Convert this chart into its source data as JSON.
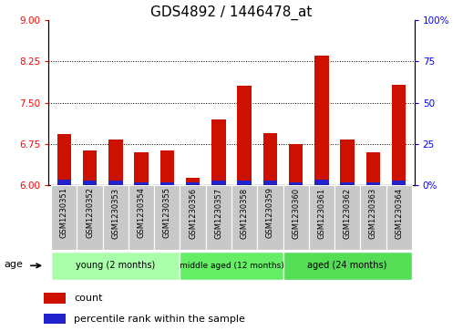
{
  "title": "GDS4892 / 1446478_at",
  "samples": [
    "GSM1230351",
    "GSM1230352",
    "GSM1230353",
    "GSM1230354",
    "GSM1230355",
    "GSM1230356",
    "GSM1230357",
    "GSM1230358",
    "GSM1230359",
    "GSM1230360",
    "GSM1230361",
    "GSM1230362",
    "GSM1230363",
    "GSM1230364"
  ],
  "red_values": [
    6.93,
    6.63,
    6.83,
    6.6,
    6.63,
    6.13,
    7.2,
    7.8,
    6.95,
    6.75,
    8.35,
    6.83,
    6.6,
    7.83
  ],
  "blue_values": [
    0.1,
    0.08,
    0.09,
    0.06,
    0.06,
    0.05,
    0.09,
    0.08,
    0.09,
    0.06,
    0.1,
    0.06,
    0.06,
    0.09
  ],
  "base_value": 6.0,
  "ylim_left": [
    6.0,
    9.0
  ],
  "ylim_right": [
    0,
    100
  ],
  "yticks_left": [
    6,
    6.75,
    7.5,
    8.25,
    9
  ],
  "yticks_right": [
    0,
    25,
    50,
    75,
    100
  ],
  "ytick_labels_right": [
    "0%",
    "25",
    "50",
    "75",
    "100%"
  ],
  "groups": [
    {
      "label": "young (2 months)",
      "start": 0,
      "end": 5,
      "color": "#aaffaa"
    },
    {
      "label": "middle aged (12 months)",
      "start": 5,
      "end": 9,
      "color": "#55dd55"
    },
    {
      "label": "aged (24 months)",
      "start": 9,
      "end": 14,
      "color": "#44cc44"
    }
  ],
  "age_label": "age",
  "legend_count": "count",
  "legend_percentile": "percentile rank within the sample",
  "bar_color_red": "#CC1100",
  "bar_color_blue": "#2222CC",
  "bar_width": 0.55,
  "background_color": "#FFFFFF",
  "panel_color": "#C8C8C8",
  "dotted_lines": [
    6.75,
    7.5,
    8.25
  ],
  "title_fontsize": 11,
  "tick_fontsize": 7.5,
  "label_fontsize": 8
}
